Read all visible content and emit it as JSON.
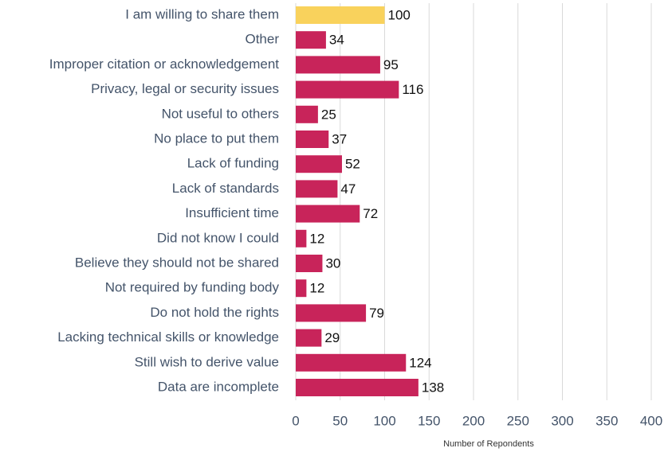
{
  "chart_data": {
    "type": "barh",
    "categories": [
      "I am willing to share them",
      "Other",
      "Improper citation or acknowledgement",
      "Privacy, legal or security issues",
      "Not useful to others",
      "No place to put them",
      "Lack of funding",
      "Lack of standards",
      "Insufficient time",
      "Did not know I could",
      "Believe they should not be shared",
      "Not required by funding body",
      "Do not hold the rights",
      "Lacking technical skills or knowledge",
      "Still wish to derive value",
      "Data are incomplete"
    ],
    "values": [
      100,
      34,
      95,
      116,
      25,
      37,
      52,
      47,
      72,
      12,
      30,
      12,
      79,
      29,
      124,
      138
    ],
    "colors": [
      "#f9d25c",
      "#c8245a",
      "#c8245a",
      "#c8245a",
      "#c8245a",
      "#c8245a",
      "#c8245a",
      "#c8245a",
      "#c8245a",
      "#c8245a",
      "#c8245a",
      "#c8245a",
      "#c8245a",
      "#c8245a",
      "#c8245a",
      "#c8245a"
    ],
    "xlabel": "Number of Repondents",
    "xlim": [
      0,
      400
    ],
    "xticks": [
      0,
      50,
      100,
      150,
      200,
      250,
      300,
      350,
      400
    ],
    "grid": true
  }
}
